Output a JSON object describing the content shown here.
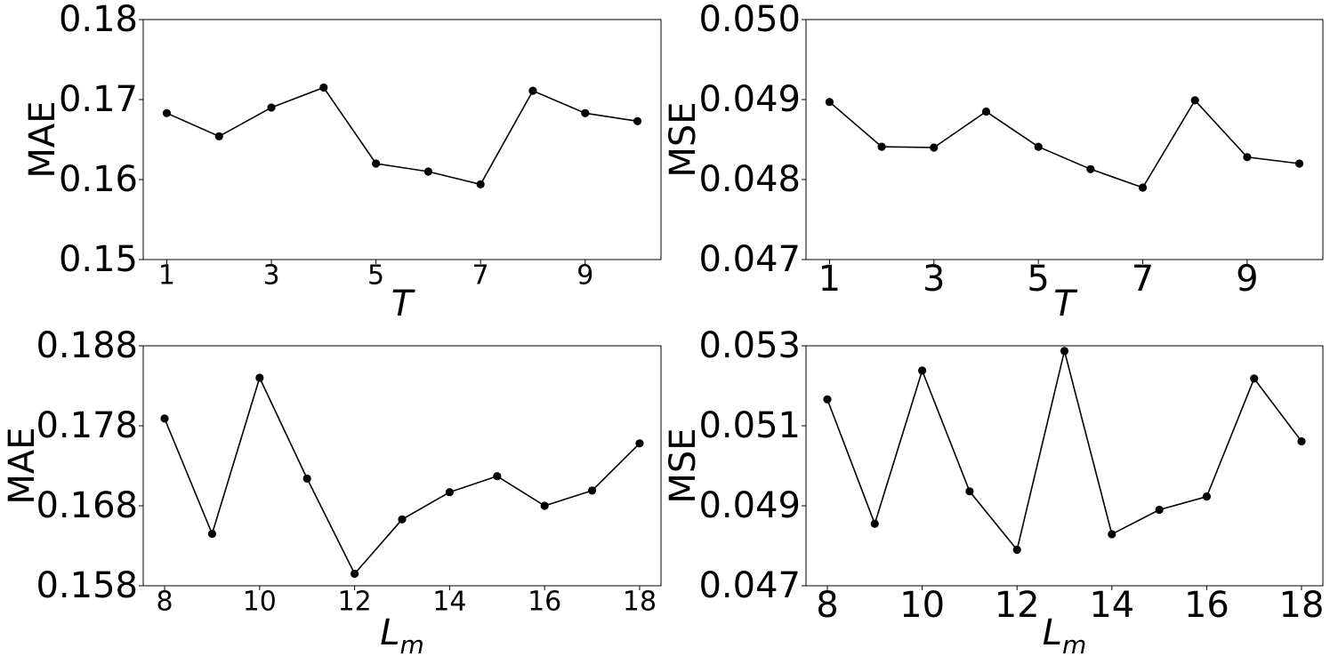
{
  "chart_data": [
    {
      "type": "line",
      "panel": "top-left",
      "xlabel": "T",
      "xlabel_italic": true,
      "ylabel": "MAE",
      "x": [
        1,
        2,
        3,
        4,
        5,
        6,
        7,
        8,
        9,
        10
      ],
      "xlim": [
        0.55,
        10.45
      ],
      "xticks": [
        1,
        3,
        5,
        7,
        9
      ],
      "ylim": [
        0.15,
        0.18
      ],
      "yticks": [
        "0.15",
        "0.16",
        "0.17",
        "0.18"
      ],
      "series": [
        {
          "values": [
            0.1683,
            0.1654,
            0.169,
            0.1715,
            0.162,
            0.161,
            0.1594,
            0.1711,
            0.1683,
            0.1673
          ]
        }
      ],
      "grid": false,
      "line_color": "#000000",
      "marker_color": "#000000"
    },
    {
      "type": "line",
      "panel": "top-right",
      "xlabel": "T",
      "xlabel_italic": true,
      "ylabel": "MSE",
      "x": [
        1,
        2,
        3,
        4,
        5,
        6,
        7,
        8,
        9,
        10
      ],
      "xlim": [
        0.55,
        10.45
      ],
      "xticks": [
        1,
        3,
        5,
        7,
        9
      ],
      "ylim": [
        0.047,
        0.05
      ],
      "yticks": [
        "0.047",
        "0.048",
        "0.049",
        "0.050"
      ],
      "series": [
        {
          "values": [
            0.04897,
            0.04841,
            0.0484,
            0.04885,
            0.04841,
            0.04813,
            0.0479,
            0.04899,
            0.04828,
            0.0482
          ]
        }
      ],
      "grid": false,
      "line_color": "#000000",
      "marker_color": "#000000"
    },
    {
      "type": "line",
      "panel": "bottom-left",
      "xlabel": "L",
      "xlabel_sub": "m",
      "xlabel_italic": true,
      "ylabel": "MAE",
      "x": [
        8,
        9,
        10,
        11,
        12,
        13,
        14,
        15,
        16,
        17,
        18
      ],
      "xlim": [
        7.55,
        18.45
      ],
      "xticks": [
        8,
        10,
        12,
        14,
        16,
        18
      ],
      "ylim": [
        0.158,
        0.188
      ],
      "yticks": [
        "0.158",
        "0.168",
        "0.178",
        "0.188"
      ],
      "series": [
        {
          "values": [
            0.1789,
            0.1645,
            0.184,
            0.1714,
            0.1595,
            0.1663,
            0.1697,
            0.1717,
            0.168,
            0.1699,
            0.1758
          ]
        }
      ],
      "grid": false,
      "line_color": "#000000",
      "marker_color": "#000000"
    },
    {
      "type": "line",
      "panel": "bottom-right",
      "xlabel": "L",
      "xlabel_sub": "m",
      "xlabel_italic": true,
      "ylabel": "MSE",
      "x": [
        8,
        9,
        10,
        11,
        12,
        13,
        14,
        15,
        16,
        17,
        18
      ],
      "xlim": [
        7.55,
        18.45
      ],
      "xticks": [
        8,
        10,
        12,
        14,
        16,
        18
      ],
      "ylim": [
        0.047,
        0.053
      ],
      "yticks": [
        "0.047",
        "0.049",
        "0.051",
        "0.053"
      ],
      "series": [
        {
          "values": [
            0.05166,
            0.04855,
            0.05238,
            0.04936,
            0.0479,
            0.05287,
            0.04829,
            0.0489,
            0.04923,
            0.05218,
            0.05061
          ]
        }
      ],
      "grid": false,
      "line_color": "#000000",
      "marker_color": "#000000"
    }
  ]
}
